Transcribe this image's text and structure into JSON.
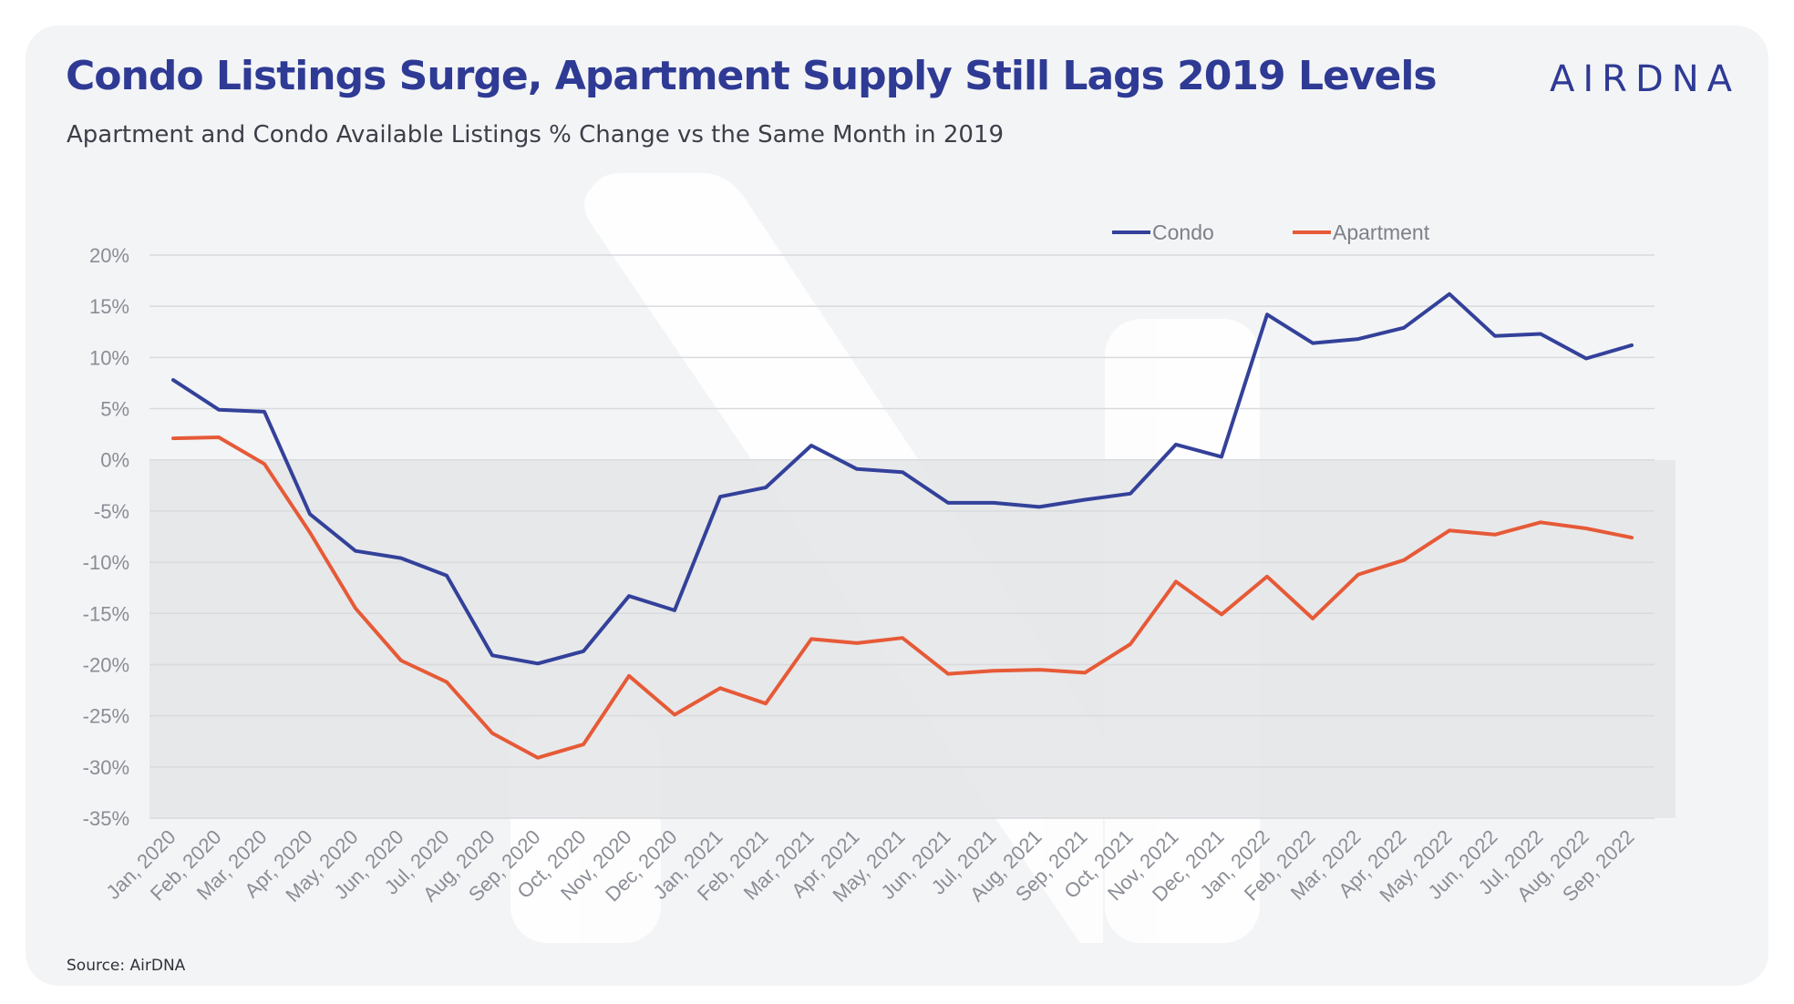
{
  "title": "Condo Listings Surge, Apartment Supply Still Lags 2019 Levels",
  "subtitle": "Apartment and Condo Available Listings % Change vs the Same Month in 2019",
  "brand": "AIRDNA",
  "source": "Source: AirDNA",
  "colors": {
    "condo": "#33419a",
    "apartment": "#e65a37",
    "title": "#2e3a94",
    "card_background": "#f3f4f6",
    "negative_band": "#e4e5e7"
  },
  "chart_data": {
    "type": "line",
    "title": "Apartment and Condo Available Listings % Change vs the Same Month in 2019",
    "xlabel": "",
    "ylabel": "",
    "ylim": [
      -35,
      20
    ],
    "y_ticks": [
      20,
      15,
      10,
      5,
      0,
      -5,
      -10,
      -15,
      -20,
      -25,
      -30,
      -35
    ],
    "y_tick_labels": [
      "20%",
      "15%",
      "10%",
      "5%",
      "0%",
      "-5%",
      "-10%",
      "-15%",
      "-20%",
      "-25%",
      "-30%",
      "-35%"
    ],
    "grid": true,
    "legend_position": "top-right",
    "categories": [
      "Jan, 2020",
      "Feb, 2020",
      "Mar, 2020",
      "Apr, 2020",
      "May, 2020",
      "Jun, 2020",
      "Jul, 2020",
      "Aug, 2020",
      "Sep, 2020",
      "Oct, 2020",
      "Nov, 2020",
      "Dec, 2020",
      "Jan, 2021",
      "Feb, 2021",
      "Mar, 2021",
      "Apr, 2021",
      "May, 2021",
      "Jun, 2021",
      "Jul, 2021",
      "Aug, 2021",
      "Sep, 2021",
      "Oct, 2021",
      "Nov, 2021",
      "Dec, 2021",
      "Jan, 2022",
      "Feb, 2022",
      "Mar, 2022",
      "Apr, 2022",
      "May, 2022",
      "Jun, 2022",
      "Jul, 2022",
      "Aug, 2022",
      "Sep, 2022"
    ],
    "series": [
      {
        "name": "Condo",
        "color": "#33419a",
        "values": [
          7.8,
          4.9,
          4.7,
          -5.3,
          -8.9,
          -9.6,
          -11.3,
          -19.1,
          -19.9,
          -18.7,
          -13.3,
          -14.7,
          -3.6,
          -2.7,
          1.4,
          -0.9,
          -1.2,
          -4.2,
          -4.2,
          -4.6,
          -3.9,
          -3.3,
          1.5,
          0.3,
          14.2,
          11.4,
          11.8,
          12.9,
          16.2,
          12.1,
          12.3,
          9.9,
          11.2
        ]
      },
      {
        "name": "Apartment",
        "color": "#e65a37",
        "values": [
          2.1,
          2.2,
          -0.4,
          -7.1,
          -14.5,
          -19.6,
          -21.7,
          -26.7,
          -29.1,
          -27.8,
          -21.1,
          -24.9,
          -22.3,
          -23.8,
          -17.5,
          -17.9,
          -17.4,
          -20.9,
          -20.6,
          -20.5,
          -20.8,
          -18.0,
          -11.9,
          -15.1,
          -11.4,
          -15.5,
          -11.2,
          -9.8,
          -6.9,
          -7.3,
          -6.1,
          -6.7,
          -7.6
        ]
      }
    ]
  }
}
